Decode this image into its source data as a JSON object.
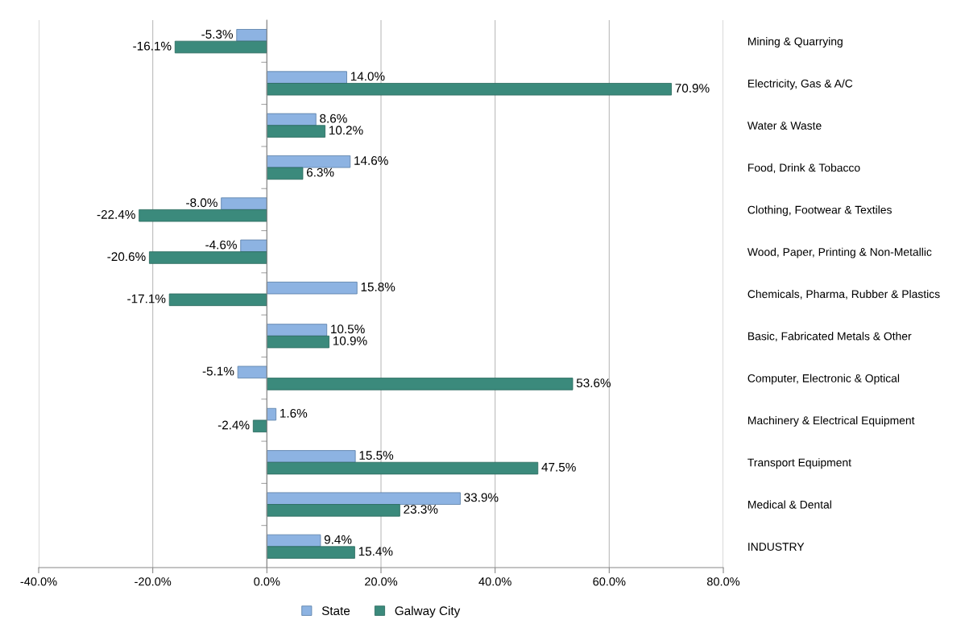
{
  "chart_data": {
    "type": "bar",
    "orientation": "horizontal",
    "categories": [
      "Mining & Quarrying",
      "Electricity, Gas & A/C",
      "Water & Waste",
      "Food, Drink & Tobacco",
      "Clothing, Footwear & Textiles",
      "Wood, Paper, Printing & Non-Metallic",
      "Chemicals, Pharma, Rubber & Plastics",
      "Basic, Fabricated Metals & Other",
      "Computer, Electronic & Optical",
      "Machinery & Electrical Equipment",
      "Transport Equipment",
      "Medical & Dental",
      "INDUSTRY"
    ],
    "series": [
      {
        "name": "State",
        "color": "#8db3e2",
        "values": [
          -5.3,
          14.0,
          8.6,
          14.6,
          -8.0,
          -4.6,
          15.8,
          10.5,
          -5.1,
          1.6,
          15.5,
          33.9,
          9.4
        ],
        "value_labels": [
          "-5.3%",
          "14.0%",
          "8.6%",
          "14.6%",
          "-8.0%",
          "-4.6%",
          "15.8%",
          "10.5%",
          "-5.1%",
          "1.6%",
          "15.5%",
          "33.9%",
          "9.4%"
        ]
      },
      {
        "name": "Galway City",
        "color": "#3b8a7c",
        "values": [
          -16.1,
          70.9,
          10.2,
          6.3,
          -22.4,
          -20.6,
          -17.1,
          10.9,
          53.6,
          -2.4,
          47.5,
          23.3,
          15.4
        ],
        "value_labels": [
          "-16.1%",
          "70.9%",
          "10.2%",
          "6.3%",
          "-22.4%",
          "-20.6%",
          "-17.1%",
          "10.9%",
          "53.6%",
          "-2.4%",
          "47.5%",
          "23.3%",
          "15.4%"
        ]
      }
    ],
    "xlim": [
      -40,
      80
    ],
    "xticks": [
      {
        "value": -40,
        "label": "-40.0%"
      },
      {
        "value": -20,
        "label": "-20.0%"
      },
      {
        "value": 0,
        "label": "0.0%"
      },
      {
        "value": 20,
        "label": "20.0%"
      },
      {
        "value": 40,
        "label": "40.0%"
      },
      {
        "value": 60,
        "label": "60.0%"
      },
      {
        "value": 80,
        "label": "80.0%"
      }
    ],
    "grid": "x",
    "legend": "bottom"
  }
}
